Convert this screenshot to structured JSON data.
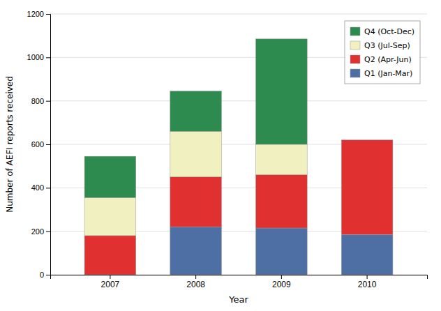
{
  "chart_data": {
    "type": "bar",
    "stacked": true,
    "categories": [
      "2007",
      "2008",
      "2009",
      "2010"
    ],
    "series": [
      {
        "name": "Q1 (Jan-Mar)",
        "color": "#4e6fa3",
        "values": [
          0,
          220,
          215,
          185
        ]
      },
      {
        "name": "Q2 (Apr-Jun)",
        "color": "#e03030",
        "values": [
          180,
          230,
          245,
          435
        ]
      },
      {
        "name": "Q3 (Jul-Sep)",
        "color": "#f0f0c0",
        "values": [
          175,
          210,
          140,
          0
        ]
      },
      {
        "name": "Q4 (Oct-Dec)",
        "color": "#2e8b50",
        "values": [
          190,
          185,
          485,
          0
        ]
      }
    ],
    "xlabel": "Year",
    "ylabel": "Number of AEFI reports received",
    "ylim": [
      0,
      1200
    ],
    "yticks": [
      0,
      200,
      400,
      600,
      800,
      1000,
      1200
    ],
    "grid": true,
    "legend": "upper right"
  }
}
